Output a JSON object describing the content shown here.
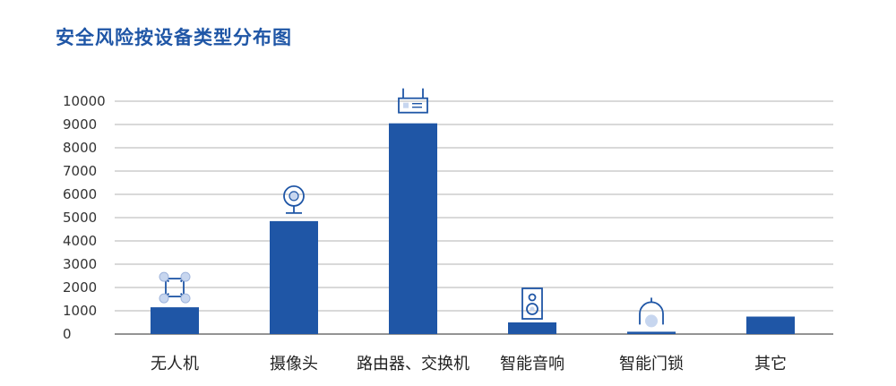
{
  "chart_data": {
    "type": "bar",
    "title": "安全风险按设备类型分布图",
    "xlabel": "",
    "ylabel": "",
    "categories": [
      "无人机",
      "摄像头",
      "路由器、交换机",
      "智能音响",
      "智能门锁",
      "其它"
    ],
    "values": [
      1150,
      4850,
      9050,
      500,
      100,
      750
    ],
    "ylim": [
      0,
      10000
    ],
    "yticks": [
      0,
      1000,
      2000,
      3000,
      4000,
      5000,
      6000,
      7000,
      8000,
      9000,
      10000
    ],
    "grid": true,
    "bar_color": "#1f56a6",
    "icon_color": "#1f56a6",
    "icons": [
      "drone-icon",
      "webcam-icon",
      "router-icon",
      "speaker-icon",
      "smart-lock-icon",
      ""
    ]
  }
}
